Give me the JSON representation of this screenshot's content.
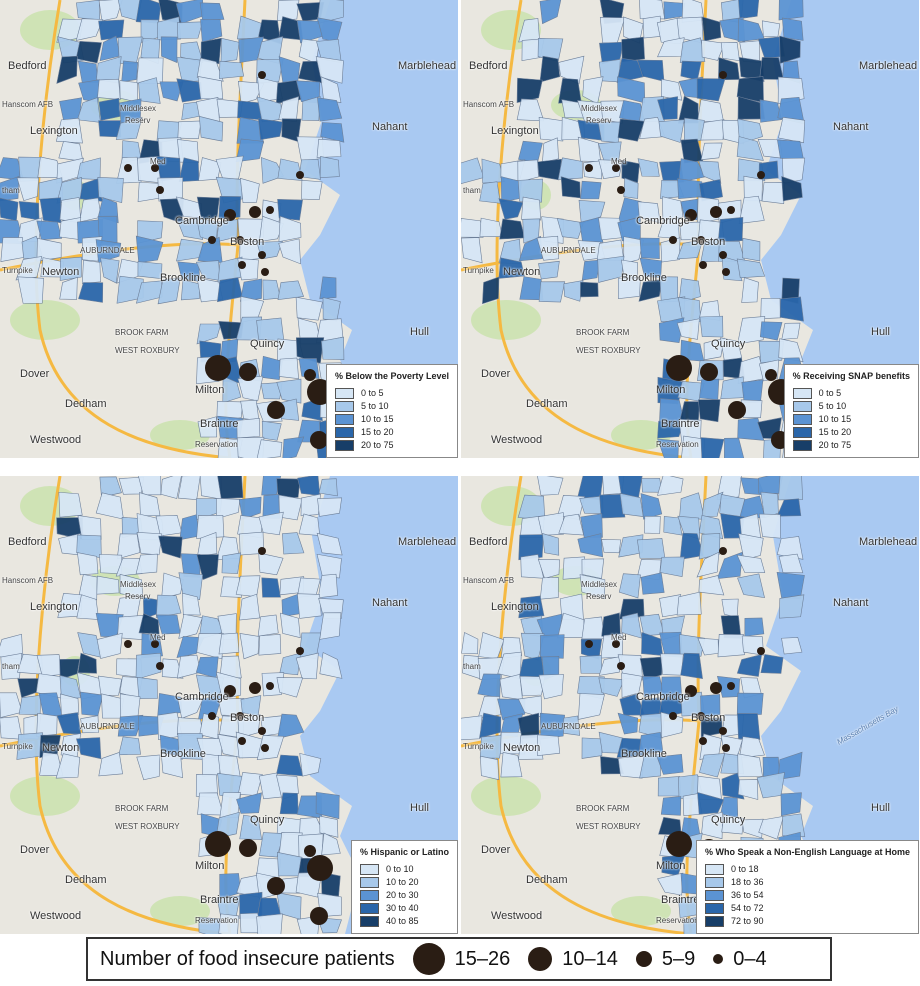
{
  "panels": [
    {
      "legend_title": "% Below the Poverty Level",
      "classes": [
        "0 to 5",
        "5 to 10",
        "10 to 15",
        "15 to 20",
        "20 to 75"
      ],
      "map_extra_label": ""
    },
    {
      "legend_title": "% Receiving SNAP benefits",
      "classes": [
        "0 to 5",
        "5 to 10",
        "10 to 15",
        "15 to 20",
        "20 to 75"
      ],
      "map_extra_label": ""
    },
    {
      "legend_title": "% Hispanic or Latino",
      "classes": [
        "0 to 10",
        "10 to 20",
        "20 to 30",
        "30 to 40",
        "40 to 85"
      ],
      "map_extra_label": ""
    },
    {
      "legend_title": "% Who Speak a Non-English Language at Home",
      "classes": [
        "0 to 18",
        "18 to 36",
        "36 to 54",
        "54 to 72",
        "72 to 90"
      ],
      "map_extra_label": "Massachusetts Bay"
    }
  ],
  "class_colors": [
    "#d6e6f5",
    "#a7c8ea",
    "#5b93d3",
    "#2a66aa",
    "#173e68"
  ],
  "map_labels": {
    "bedford": "Bedford",
    "hanscom": "Hanscom AFB",
    "lexington": "Lexington",
    "middlesex": "Middlesex",
    "reserv": "Reserv",
    "nahant": "Nahant",
    "marblehead": "Marblehead",
    "waltham": "tham",
    "cambridge": "Cambridge",
    "boston": "Boston",
    "auburndale": "AUBURNDALE",
    "turnpike": "Turnpike",
    "newton": "Newton",
    "brookline": "Brookline",
    "brookfarm": "BROOK FARM",
    "westroxbury": "WEST ROXBURY",
    "hull": "Hull",
    "milton": "Milton",
    "quincy": "Quincy",
    "dover": "Dover",
    "dedham": "Dedham",
    "westwood": "Westwood",
    "braintree": "Braintre",
    "reservation": "Reservation",
    "medford": "Med"
  },
  "size_legend": {
    "title": "Number of food insecure patients",
    "items": [
      "15–26",
      "10–14",
      "5–9",
      "0–4"
    ]
  },
  "point_color": "#2a1d14",
  "water_color": "#a9c9f2"
}
